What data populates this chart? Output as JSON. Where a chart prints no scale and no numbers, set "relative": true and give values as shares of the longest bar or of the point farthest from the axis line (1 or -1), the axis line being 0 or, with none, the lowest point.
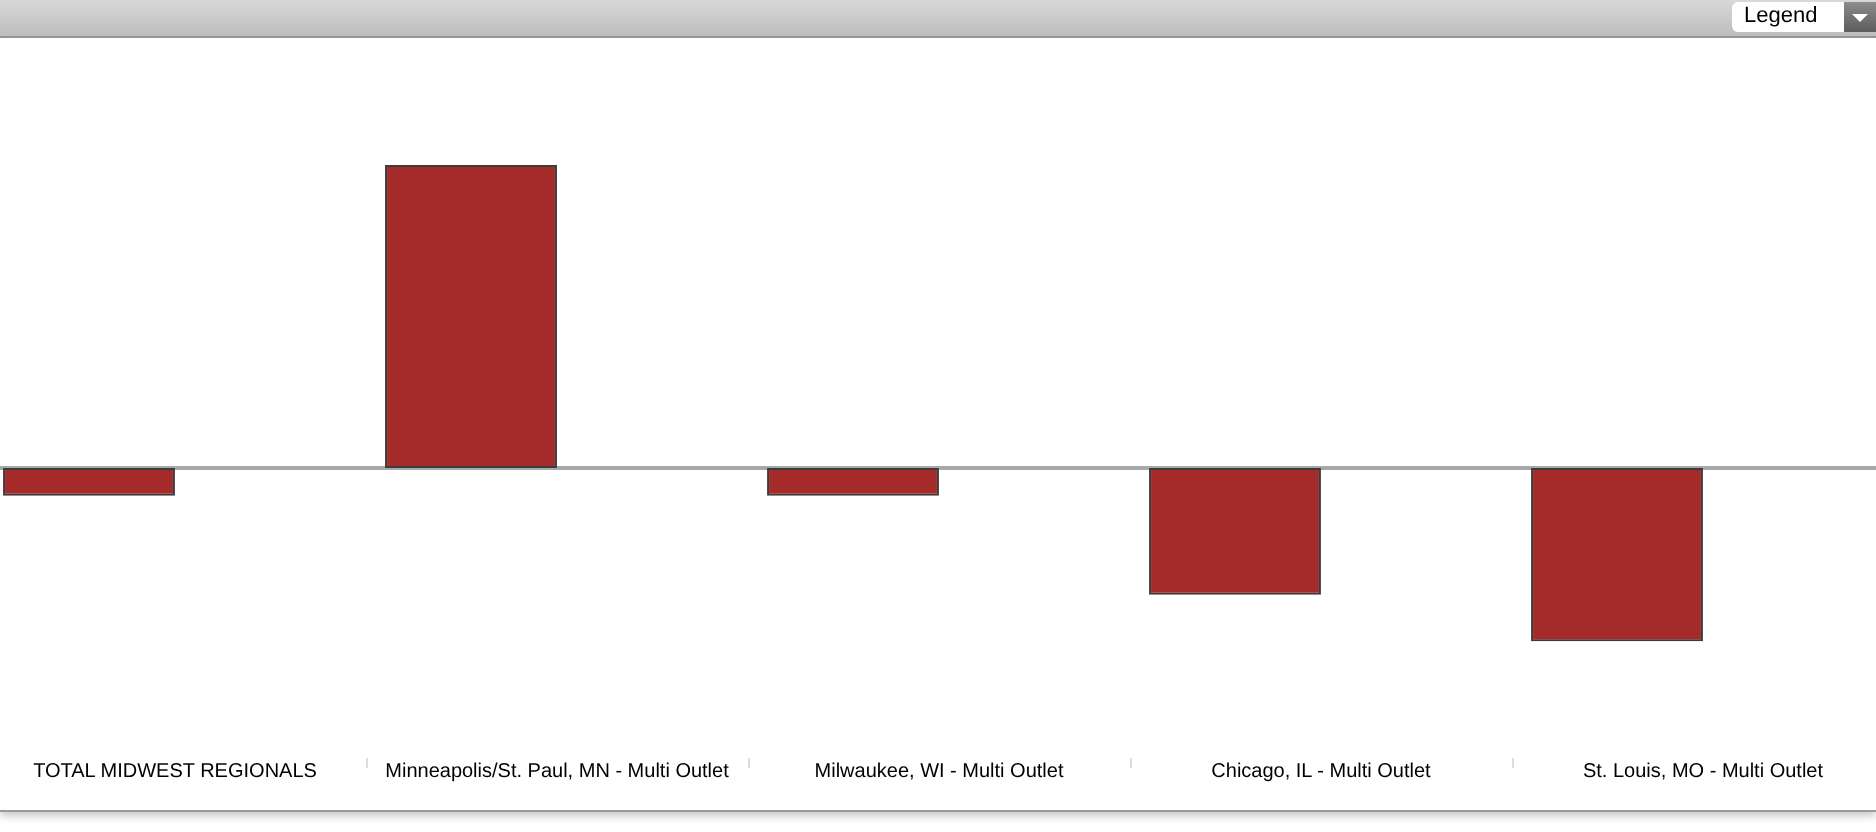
{
  "chart_data": {
    "type": "bar",
    "relative": true,
    "categories": [
      "TOTAL MIDWEST REGIONALS",
      "Minneapolis/St. Paul, MN - Multi Outlet",
      "Milwaukee, WI - Multi Outlet",
      "Chicago, IL - Multi Outlet",
      "St. Louis, MO - Multi Outlet"
    ],
    "values": [
      -0.092,
      1,
      -0.092,
      -0.418,
      -0.572
    ],
    "color": "#a52a2a",
    "annotations": [
      "Legend"
    ]
  }
}
